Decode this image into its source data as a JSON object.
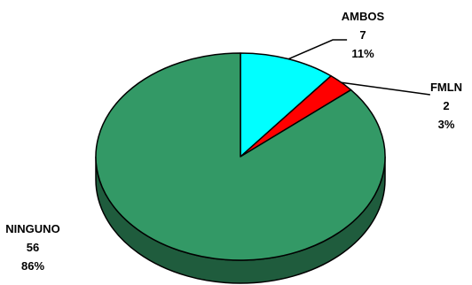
{
  "chart_data": {
    "type": "pie",
    "style": "3d",
    "slices": [
      {
        "label": "AMBOS",
        "value": 7,
        "percent": "11%",
        "color": "#00ffff"
      },
      {
        "label": "FMLN",
        "value": 2,
        "percent": "3%",
        "color": "#ff0000"
      },
      {
        "label": "NINGUNO",
        "value": 56,
        "percent": "86%",
        "color": "#339966"
      }
    ],
    "side_color": "#1f5c3d",
    "edge_color": "#000000"
  },
  "labels": {
    "ambos": {
      "name": "AMBOS",
      "value": "7",
      "percent": "11%"
    },
    "fmln": {
      "name": "FMLN",
      "value": "2",
      "percent": "3%"
    },
    "ninguno": {
      "name": "NINGUNO",
      "value": "56",
      "percent": "86%"
    }
  }
}
